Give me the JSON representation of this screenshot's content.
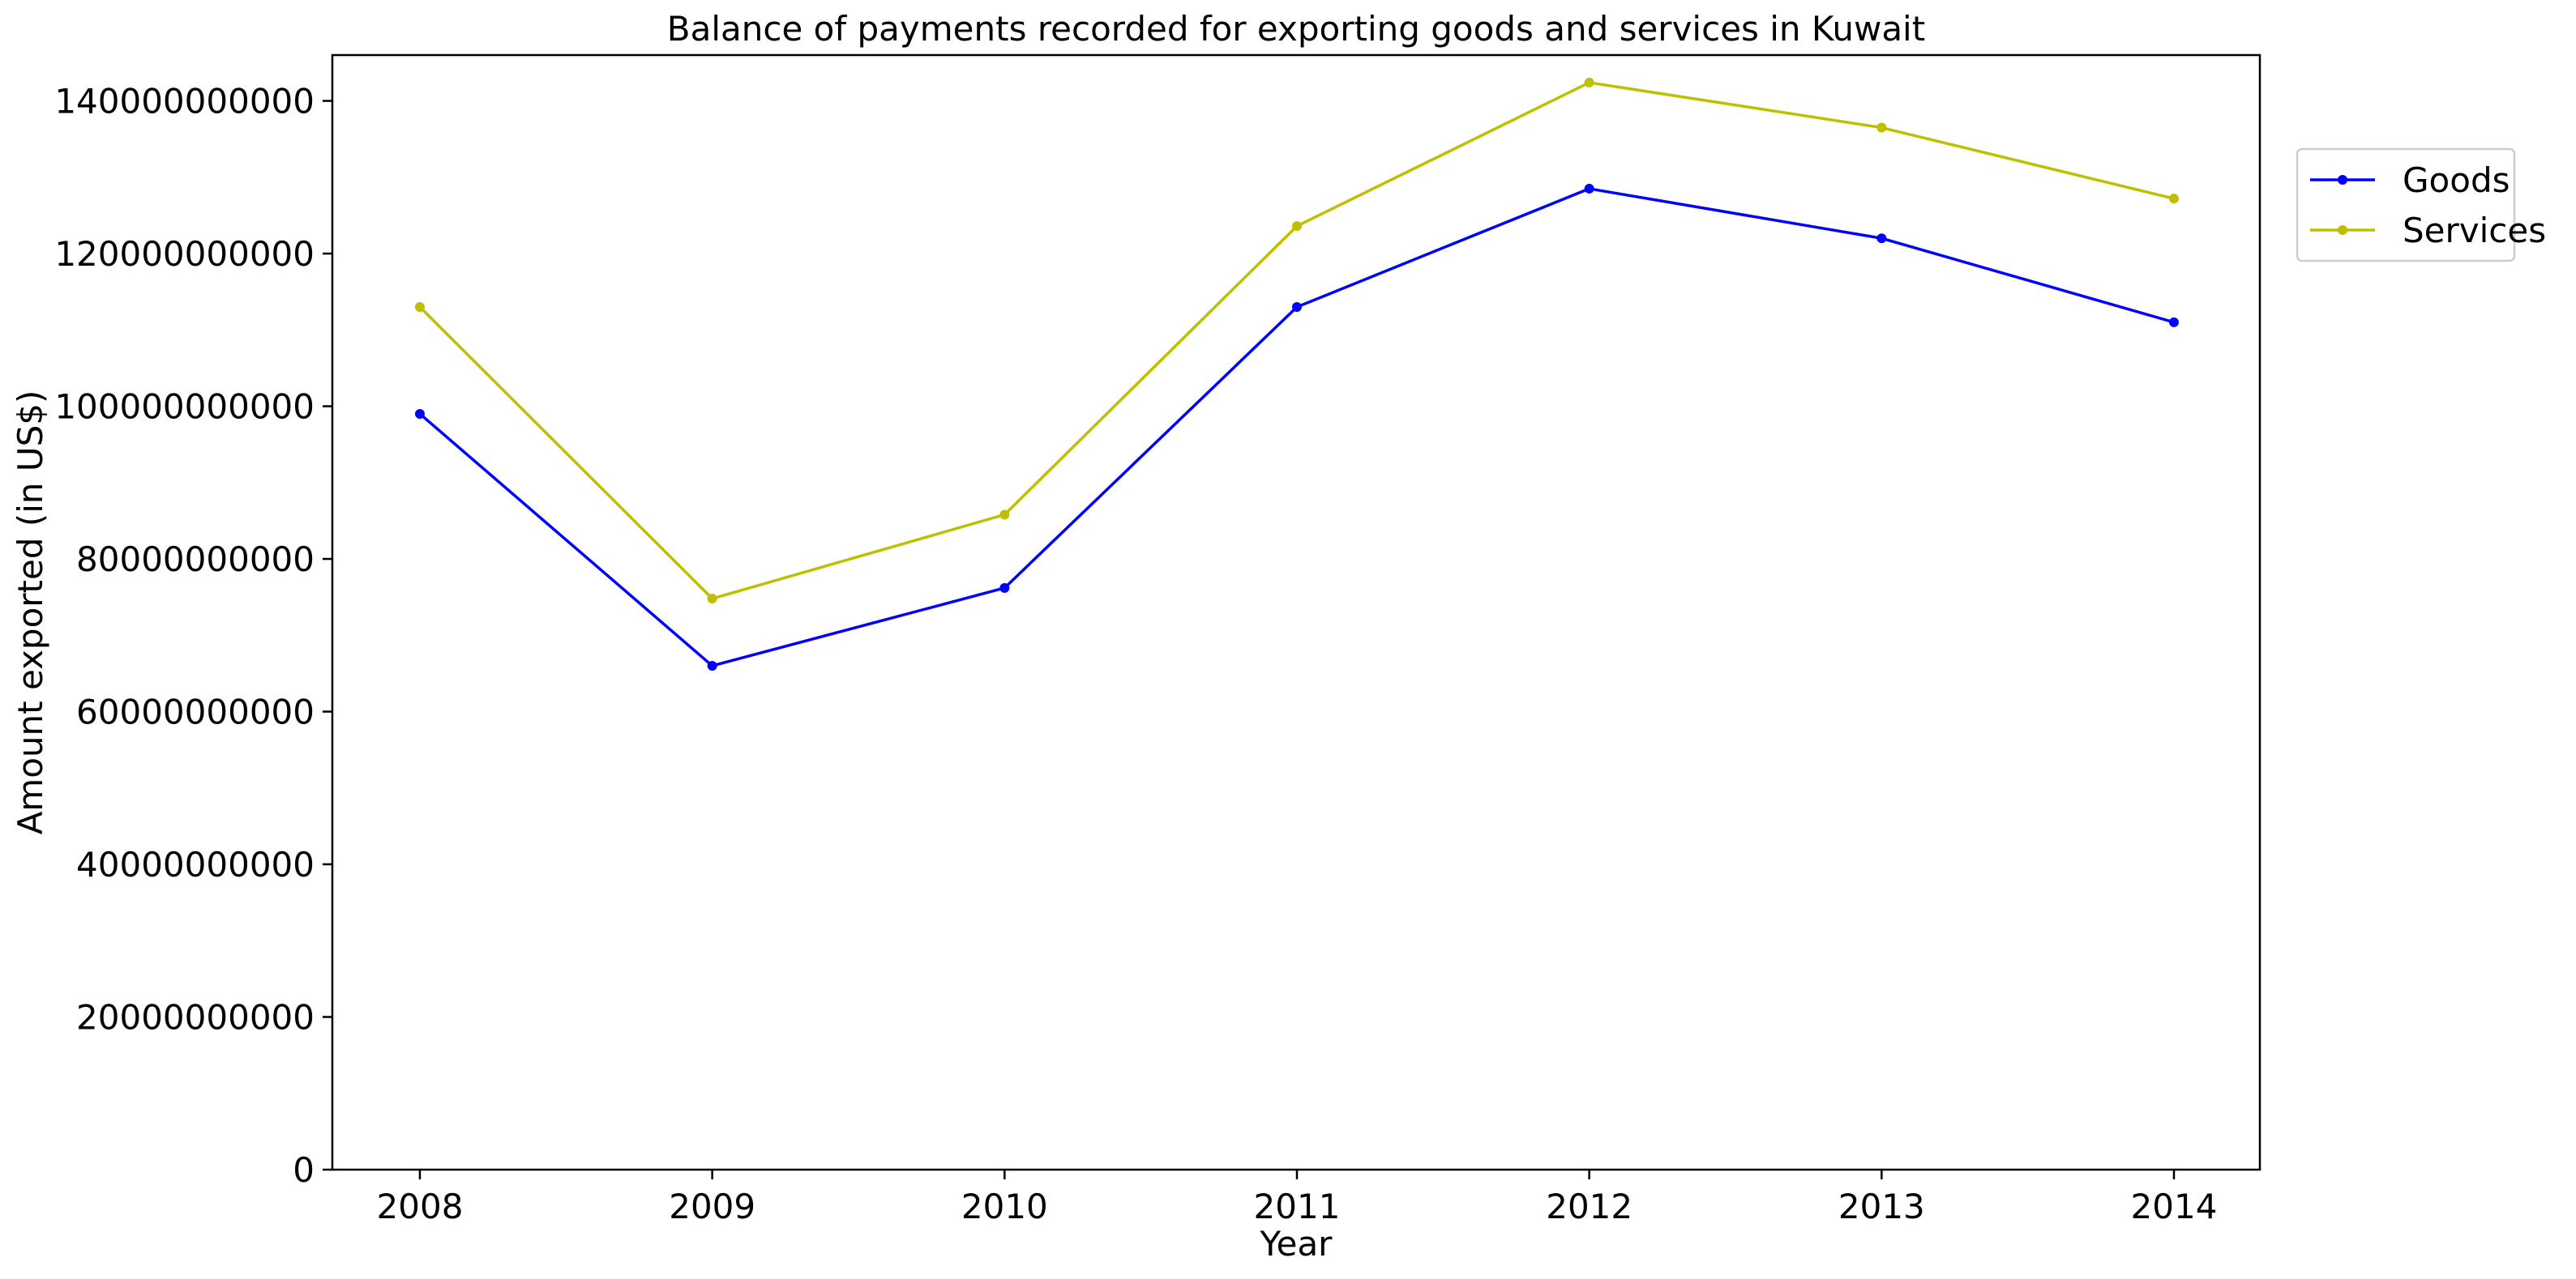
{
  "chart_data": {
    "type": "line",
    "title": "Balance of payments recorded for exporting goods and services in Kuwait",
    "xlabel": "Year",
    "ylabel": "Amount exported (in US$)",
    "categories": [
      "2008",
      "2009",
      "2010",
      "2011",
      "2012",
      "2013",
      "2014"
    ],
    "ylim": [
      0,
      146000000000
    ],
    "yticks": [
      0,
      20000000000,
      40000000000,
      60000000000,
      80000000000,
      100000000000,
      120000000000,
      140000000000
    ],
    "ytick_labels": [
      "0",
      "20000000000",
      "40000000000",
      "60000000000",
      "80000000000",
      "100000000000",
      "120000000000",
      "140000000000"
    ],
    "grid": false,
    "legend_position": "top-right outside",
    "series": [
      {
        "name": "Goods",
        "color": "#0000ff",
        "marker": "circle",
        "values": [
          99000000000,
          66000000000,
          76200000000,
          113000000000,
          128500000000,
          122000000000,
          111000000000
        ]
      },
      {
        "name": "Services",
        "color": "#bfbf00",
        "marker": "circle",
        "values": [
          113000000000,
          74800000000,
          85800000000,
          123600000000,
          142400000000,
          136500000000,
          127200000000
        ]
      }
    ]
  }
}
